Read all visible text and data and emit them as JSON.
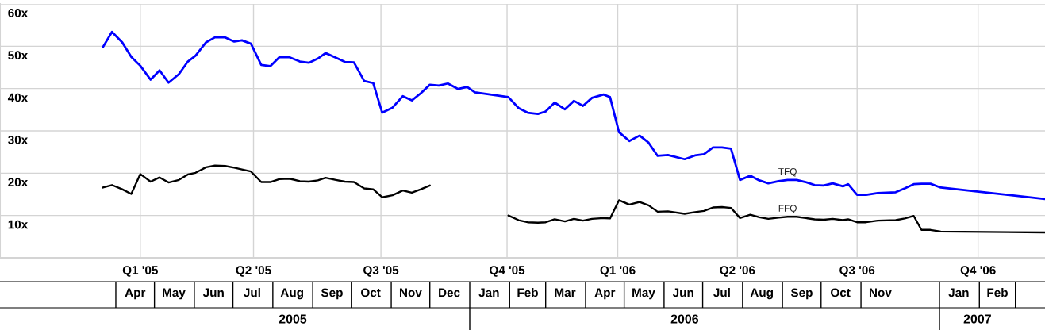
{
  "chart_data": {
    "type": "line",
    "x": [
      "2005-03-22",
      "2005-03-29",
      "2005-04-06",
      "2005-04-13",
      "2005-04-20",
      "2005-04-28",
      "2005-05-05",
      "2005-05-12",
      "2005-05-20",
      "2005-05-27",
      "2005-06-02",
      "2005-06-10",
      "2005-06-17",
      "2005-06-25",
      "2005-07-02",
      "2005-07-08",
      "2005-07-15",
      "2005-07-23",
      "2005-07-30",
      "2005-08-06",
      "2005-08-14",
      "2005-08-22",
      "2005-08-29",
      "2005-09-05",
      "2005-09-11",
      "2005-09-19",
      "2005-09-26",
      "2005-10-03",
      "2005-10-11",
      "2005-10-18",
      "2005-10-25",
      "2005-11-02",
      "2005-11-10",
      "2005-11-17",
      "2005-11-24",
      "2005-12-01",
      "2005-12-08",
      "2005-12-15",
      "2005-12-23",
      "2005-12-30",
      "2006-01-05",
      "2006-01-31",
      "2006-02-08",
      "2006-02-15",
      "2006-02-23",
      "2006-03-01",
      "2006-03-08",
      "2006-03-16",
      "2006-03-23",
      "2006-03-30",
      "2006-04-06",
      "2006-04-15",
      "2006-04-20",
      "2006-04-27",
      "2006-05-05",
      "2006-05-13",
      "2006-05-20",
      "2006-05-27",
      "2006-06-04",
      "2006-06-17",
      "2006-06-25",
      "2006-07-02",
      "2006-07-09",
      "2006-07-16",
      "2006-07-23",
      "2006-07-30",
      "2006-08-07",
      "2006-08-14",
      "2006-08-21",
      "2006-08-29",
      "2006-09-05",
      "2006-09-12",
      "2006-09-19",
      "2006-09-26",
      "2006-10-03",
      "2006-10-10",
      "2006-10-18",
      "2006-10-22",
      "2006-10-29",
      "2006-11-05",
      "2006-11-14",
      "2006-11-28",
      "2006-12-05",
      "2006-12-12",
      "2006-12-18",
      "2006-12-25",
      "2007-01-02",
      "2007-03-24"
    ],
    "series": [
      {
        "name": "TFQ",
        "color": "#0000ff",
        "values": [
          49.8,
          53.4,
          50.9,
          47.5,
          45.4,
          42.1,
          44.3,
          41.4,
          43.4,
          46.4,
          47.8,
          50.9,
          52.1,
          52.1,
          51.1,
          51.4,
          50.6,
          45.6,
          45.3,
          47.4,
          47.4,
          46.4,
          46.1,
          47.1,
          48.4,
          47.3,
          46.3,
          46.2,
          41.8,
          41.3,
          34.3,
          35.5,
          38.2,
          37.2,
          38.9,
          40.9,
          40.7,
          41.2,
          39.9,
          40.4,
          39.1,
          38.0,
          35.4,
          34.3,
          34.0,
          34.6,
          36.7,
          35.1,
          37.1,
          35.9,
          37.8,
          38.6,
          38.0,
          29.7,
          27.6,
          28.9,
          27.2,
          24.1,
          24.3,
          23.3,
          24.2,
          24.5,
          26.1,
          26.1,
          25.8,
          18.4,
          19.4,
          18.3,
          17.6,
          18.1,
          18.4,
          18.4,
          17.9,
          17.2,
          17.1,
          17.6,
          16.9,
          17.4,
          14.9,
          14.9,
          15.3,
          15.5,
          16.4,
          17.4,
          17.5,
          17.5,
          16.6,
          13.9
        ]
      },
      {
        "name": "FFQ",
        "color": "#000000",
        "values": [
          16.6,
          17.2,
          16.2,
          15.1,
          19.8,
          18.0,
          19.0,
          17.8,
          18.4,
          19.7,
          20.1,
          21.4,
          21.8,
          21.7,
          21.3,
          20.9,
          20.4,
          17.9,
          17.9,
          18.6,
          18.7,
          18.1,
          18.0,
          18.3,
          18.9,
          18.4,
          18.0,
          17.9,
          16.4,
          16.2,
          14.3,
          14.8,
          15.9,
          15.4,
          16.2,
          17.1,
          null,
          null,
          null,
          null,
          null,
          10.0,
          8.9,
          8.4,
          8.3,
          8.4,
          9.1,
          8.6,
          9.2,
          8.8,
          9.2,
          9.4,
          9.3,
          13.6,
          12.6,
          13.2,
          12.4,
          10.9,
          11.0,
          10.4,
          10.8,
          11.1,
          11.9,
          12.0,
          11.8,
          9.4,
          10.2,
          9.6,
          9.2,
          9.5,
          9.7,
          9.7,
          9.4,
          9.1,
          9.0,
          9.2,
          8.9,
          9.1,
          8.4,
          8.4,
          8.8,
          8.9,
          9.3,
          9.9,
          6.6,
          6.6,
          6.2,
          6.0
        ]
      }
    ],
    "xlim": [
      "2005-01-01",
      "2007-03-24"
    ],
    "xticks": [
      {
        "value": "2005-04-20",
        "label": "Q1 '05"
      },
      {
        "value": "2005-07-17",
        "label": "Q2 '05"
      },
      {
        "value": "2005-10-24",
        "label": "Q3 '05"
      },
      {
        "value": "2006-01-30",
        "label": "Q4 '05"
      },
      {
        "value": "2006-04-26",
        "label": "Q1 '06"
      },
      {
        "value": "2006-07-28",
        "label": "Q2 '06"
      },
      {
        "value": "2006-10-29",
        "label": "Q3 '06"
      },
      {
        "value": "2007-01-31",
        "label": "Q4 '06"
      }
    ],
    "x2lim": [
      "2005-01-01",
      "2007-03-24"
    ],
    "x2ticks": [
      {
        "value": "2005-04-16",
        "label": "Apr"
      },
      {
        "value": "2005-05-16",
        "label": "May"
      },
      {
        "value": "2005-06-16",
        "label": "Jun"
      },
      {
        "value": "2005-07-16",
        "label": "Jul"
      },
      {
        "value": "2005-08-16",
        "label": "Aug"
      },
      {
        "value": "2005-09-16",
        "label": "Sep"
      },
      {
        "value": "2005-10-16",
        "label": "Oct"
      },
      {
        "value": "2005-11-16",
        "label": "Nov"
      },
      {
        "value": "2005-12-16",
        "label": "Dec"
      },
      {
        "value": "2006-01-16",
        "label": "Jan"
      },
      {
        "value": "2006-02-15",
        "label": "Feb"
      },
      {
        "value": "2006-03-16",
        "label": "Mar"
      },
      {
        "value": "2006-04-16",
        "label": "Apr"
      },
      {
        "value": "2006-05-16",
        "label": "May"
      },
      {
        "value": "2006-06-16",
        "label": "Jun"
      },
      {
        "value": "2006-07-16",
        "label": "Jul"
      },
      {
        "value": "2006-08-16",
        "label": "Aug"
      },
      {
        "value": "2006-09-16",
        "label": "Sep"
      },
      {
        "value": "2006-10-16",
        "label": "Oct"
      },
      {
        "value": "2006-11-16",
        "label": "Nov"
      },
      {
        "value": "2007-01-16",
        "label": "Jan"
      },
      {
        "value": "2007-02-15",
        "label": "Feb"
      }
    ],
    "annotations": [
      "2005",
      "2006",
      "2007"
    ],
    "ylim": [
      0,
      60
    ],
    "yticks": [
      {
        "value": 10,
        "label": "10x"
      },
      {
        "value": 20,
        "label": "20x"
      },
      {
        "value": 30,
        "label": "30x"
      },
      {
        "value": 40,
        "label": "40x"
      },
      {
        "value": 50,
        "label": "50x"
      },
      {
        "value": 60,
        "label": "60x"
      }
    ],
    "grid": true
  }
}
